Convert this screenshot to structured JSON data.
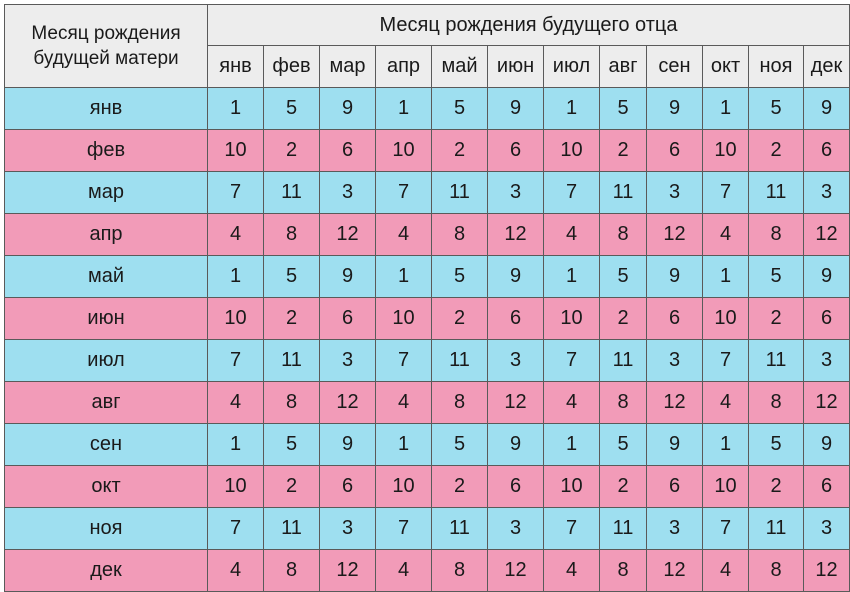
{
  "corner_label": "Месяц рождения будущей матери",
  "father_header": "Месяц рождения будущего отца",
  "father_months": [
    "янв",
    "фев",
    "мар",
    "апр",
    "май",
    "июн",
    "июл",
    "авг",
    "сен",
    "окт",
    "ноя",
    "дек"
  ],
  "row_colors": {
    "blue": "#9edff0",
    "pink": "#f29bb8",
    "header": "#ededed"
  },
  "rows": [
    {
      "mother": "янв",
      "values": [
        "1",
        "5",
        "9",
        "1",
        "5",
        "9",
        "1",
        "5",
        "9",
        "1",
        "5",
        "9"
      ]
    },
    {
      "mother": "фев",
      "values": [
        "10",
        "2",
        "6",
        "10",
        "2",
        "6",
        "10",
        "2",
        "6",
        "10",
        "2",
        "6"
      ]
    },
    {
      "mother": "мар",
      "values": [
        "7",
        "11",
        "3",
        "7",
        "11",
        "3",
        "7",
        "11",
        "3",
        "7",
        "11",
        "3"
      ]
    },
    {
      "mother": "апр",
      "values": [
        "4",
        "8",
        "12",
        "4",
        "8",
        "12",
        "4",
        "8",
        "12",
        "4",
        "8",
        "12"
      ]
    },
    {
      "mother": "май",
      "values": [
        "1",
        "5",
        "9",
        "1",
        "5",
        "9",
        "1",
        "5",
        "9",
        "1",
        "5",
        "9"
      ]
    },
    {
      "mother": "июн",
      "values": [
        "10",
        "2",
        "6",
        "10",
        "2",
        "6",
        "10",
        "2",
        "6",
        "10",
        "2",
        "6"
      ]
    },
    {
      "mother": "июл",
      "values": [
        "7",
        "11",
        "3",
        "7",
        "11",
        "3",
        "7",
        "11",
        "3",
        "7",
        "11",
        "3"
      ]
    },
    {
      "mother": "авг",
      "values": [
        "4",
        "8",
        "12",
        "4",
        "8",
        "12",
        "4",
        "8",
        "12",
        "4",
        "8",
        "12"
      ]
    },
    {
      "mother": "сен",
      "values": [
        "1",
        "5",
        "9",
        "1",
        "5",
        "9",
        "1",
        "5",
        "9",
        "1",
        "5",
        "9"
      ]
    },
    {
      "mother": "окт",
      "values": [
        "10",
        "2",
        "6",
        "10",
        "2",
        "6",
        "10",
        "2",
        "6",
        "10",
        "2",
        "6"
      ]
    },
    {
      "mother": "ноя",
      "values": [
        "7",
        "11",
        "3",
        "7",
        "11",
        "3",
        "7",
        "11",
        "3",
        "7",
        "11",
        "3"
      ]
    },
    {
      "mother": "дек",
      "values": [
        "4",
        "8",
        "12",
        "4",
        "8",
        "12",
        "4",
        "8",
        "12",
        "4",
        "8",
        "12"
      ]
    }
  ]
}
